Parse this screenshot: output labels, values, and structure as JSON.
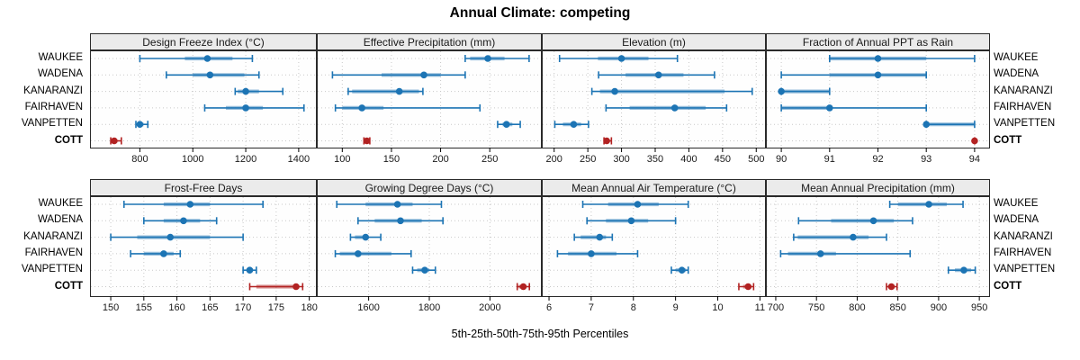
{
  "title": "Annual Climate: competing",
  "xlabel": "5th-25th-50th-75th-95th Percentiles",
  "colors": {
    "series_blue": "#1c74b4",
    "highlight_red": "#b22222",
    "strip_bg": "#ebebeb",
    "grid": "#c9c9c9",
    "border": "#2a2a2a"
  },
  "highlight_site": "COTT",
  "sites": [
    "WAUKEE",
    "WADENA",
    "KANARANZI",
    "FAIRHAVEN",
    "VANPETTEN",
    "COTT"
  ],
  "chart_data": {
    "type": "dotplot-percentiles",
    "percentiles": [
      5,
      25,
      50,
      75,
      95
    ],
    "grid": "dotted",
    "layout": "2 rows x 4 columns of panels, site labels on both sides",
    "panels": [
      {
        "row": 0,
        "col": 0,
        "title": "Design Freeze Index (°C)",
        "xlim": [
          615,
          1465
        ],
        "ticks": [
          800,
          1000,
          1200,
          1400
        ],
        "values": {
          "WAUKEE": [
            800,
            970,
            1055,
            1150,
            1225
          ],
          "WADENA": [
            900,
            1000,
            1065,
            1195,
            1250
          ],
          "KANARANZI": [
            1160,
            1170,
            1200,
            1250,
            1340
          ],
          "FAIRHAVEN": [
            1045,
            1125,
            1200,
            1265,
            1420
          ],
          "VANPETTEN": [
            785,
            792,
            800,
            814,
            830
          ],
          "COTT": [
            690,
            695,
            703,
            715,
            730
          ]
        }
      },
      {
        "row": 0,
        "col": 1,
        "title": "Effective Precipitation (mm)",
        "xlim": [
          75,
          302
        ],
        "ticks": [
          100,
          150,
          200,
          250
        ],
        "values": {
          "WAUKEE": [
            225,
            230,
            248,
            265,
            290
          ],
          "WADENA": [
            90,
            140,
            183,
            200,
            225
          ],
          "KANARANZI": [
            106,
            110,
            158,
            178,
            182
          ],
          "FAIRHAVEN": [
            93,
            100,
            120,
            142,
            240
          ],
          "VANPETTEN": [
            258,
            263,
            267,
            273,
            281
          ],
          "COTT": [
            122,
            123,
            125,
            127,
            128
          ]
        }
      },
      {
        "row": 0,
        "col": 2,
        "title": "Elevation (m)",
        "xlim": [
          183,
          513
        ],
        "ticks": [
          200,
          250,
          300,
          350,
          400,
          450,
          500
        ],
        "values": {
          "WAUKEE": [
            208,
            265,
            300,
            340,
            383
          ],
          "WADENA": [
            266,
            306,
            355,
            392,
            438
          ],
          "KANARANZI": [
            256,
            268,
            290,
            453,
            494
          ],
          "FAIRHAVEN": [
            277,
            312,
            379,
            425,
            456
          ],
          "VANPETTEN": [
            201,
            213,
            229,
            240,
            251
          ],
          "COTT": [
            274,
            276,
            278,
            282,
            285
          ]
        }
      },
      {
        "row": 0,
        "col": 3,
        "title": "Fraction of Annual PPT as Rain",
        "xlim": [
          89.7,
          94.3
        ],
        "ticks": [
          90,
          91,
          92,
          93,
          94
        ],
        "values": {
          "WAUKEE": [
            91,
            91,
            92,
            93,
            94
          ],
          "WADENA": [
            90,
            91,
            92,
            93,
            93
          ],
          "KANARANZI": [
            90,
            90,
            90,
            91,
            91
          ],
          "FAIRHAVEN": [
            90,
            90,
            91,
            91,
            93
          ],
          "VANPETTEN": [
            93,
            93,
            93,
            94,
            94
          ],
          "COTT": [
            94,
            94,
            94,
            94,
            94
          ]
        }
      },
      {
        "row": 1,
        "col": 0,
        "title": "Frost-Free Days",
        "xlim": [
          147,
          181
        ],
        "ticks": [
          150,
          155,
          160,
          165,
          170,
          175,
          180
        ],
        "values": {
          "WAUKEE": [
            152,
            158,
            162,
            165,
            173
          ],
          "WADENA": [
            155,
            158,
            161,
            163.5,
            166
          ],
          "KANARANZI": [
            150,
            154,
            159,
            165,
            170
          ],
          "FAIRHAVEN": [
            153,
            155,
            158,
            159.5,
            160.5
          ],
          "VANPETTEN": [
            170,
            170.5,
            171,
            171.5,
            172
          ],
          "COTT": [
            171,
            172,
            178,
            178.5,
            179
          ]
        }
      },
      {
        "row": 1,
        "col": 1,
        "title": "Growing Degree Days (°C)",
        "xlim": [
          1432,
          2168
        ],
        "ticks": [
          1600,
          1800,
          2000
        ],
        "values": {
          "WAUKEE": [
            1495,
            1590,
            1695,
            1745,
            1840
          ],
          "WADENA": [
            1565,
            1620,
            1705,
            1775,
            1845
          ],
          "KANARANZI": [
            1540,
            1555,
            1590,
            1600,
            1640
          ],
          "FAIRHAVEN": [
            1490,
            1505,
            1565,
            1675,
            1740
          ],
          "VANPETTEN": [
            1745,
            1760,
            1785,
            1800,
            1820
          ],
          "COTT": [
            2090,
            2095,
            2110,
            2120,
            2130
          ]
        }
      },
      {
        "row": 1,
        "col": 2,
        "title": "Mean Annual Air Temperature (°C)",
        "xlim": [
          5.85,
          11.12
        ],
        "ticks": [
          6,
          7,
          8,
          9,
          10,
          11
        ],
        "values": {
          "WAUKEE": [
            6.8,
            7.4,
            8.1,
            8.6,
            9.3
          ],
          "WADENA": [
            6.9,
            7.35,
            7.95,
            8.35,
            9.0
          ],
          "KANARANZI": [
            6.6,
            6.75,
            7.2,
            7.35,
            7.5
          ],
          "FAIRHAVEN": [
            6.2,
            6.45,
            7.0,
            7.6,
            8.1
          ],
          "VANPETTEN": [
            8.9,
            9.0,
            9.15,
            9.25,
            9.3
          ],
          "COTT": [
            10.5,
            10.6,
            10.72,
            10.8,
            10.85
          ]
        }
      },
      {
        "row": 1,
        "col": 3,
        "title": "Mean Annual Precipitation (mm)",
        "xlim": [
          689,
          962
        ],
        "ticks": [
          700,
          750,
          800,
          850,
          900,
          950
        ],
        "values": {
          "WAUKEE": [
            840,
            850,
            888,
            910,
            930
          ],
          "WADENA": [
            728,
            768,
            820,
            845,
            868
          ],
          "KANARANZI": [
            722,
            727,
            795,
            814,
            836
          ],
          "FAIRHAVEN": [
            706,
            715,
            755,
            774,
            865
          ],
          "VANPETTEN": [
            912,
            920,
            931,
            940,
            945
          ],
          "COTT": [
            836,
            839,
            842,
            846,
            849
          ]
        }
      }
    ]
  }
}
